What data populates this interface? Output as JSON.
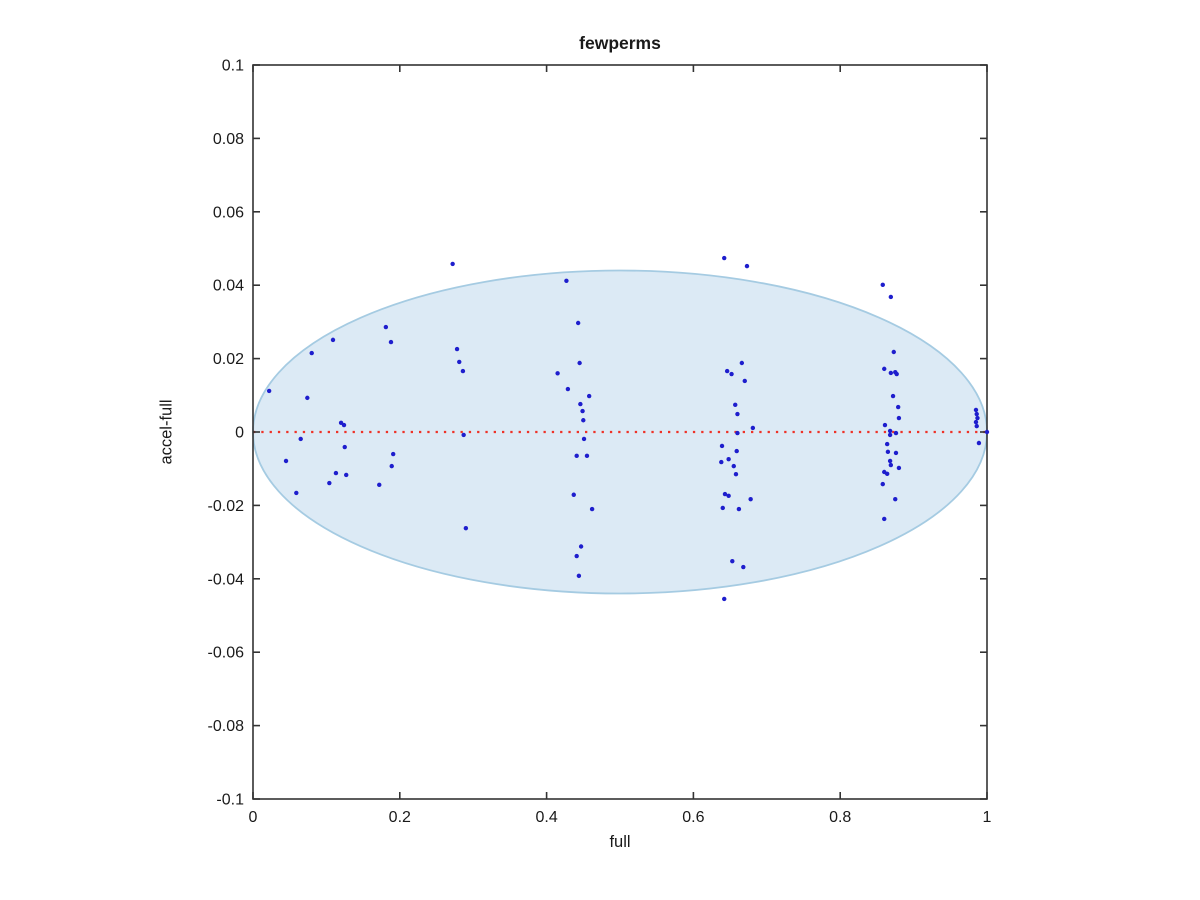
{
  "chart_data": {
    "type": "scatter",
    "title": "fewperms",
    "xlabel": "full",
    "ylabel": "accel-full",
    "xlim": [
      0,
      1
    ],
    "ylim": [
      -0.1,
      0.1
    ],
    "xticks": [
      0,
      0.2,
      0.4,
      0.6,
      0.8,
      1
    ],
    "xticklabels": [
      "0",
      "0.2",
      "0.4",
      "0.6",
      "0.8",
      "1"
    ],
    "yticks": [
      -0.1,
      -0.08,
      -0.06,
      -0.04,
      -0.02,
      0,
      0.02,
      0.04,
      0.06,
      0.08,
      0.1
    ],
    "yticklabels": [
      "-0.1",
      "-0.08",
      "-0.06",
      "-0.04",
      "-0.02",
      "0",
      "0.02",
      "0.04",
      "0.06",
      "0.08",
      "0.1"
    ],
    "grid": false,
    "legend": null,
    "axis_color": "#333333",
    "ellipse": {
      "cx": 0.5,
      "cy": 0,
      "rx": 0.5,
      "ry": 0.044,
      "fill": "#dceaf5",
      "stroke": "#a5cbe2"
    },
    "zero_line": {
      "y": 0,
      "style": "dotted",
      "color": "#ee3227"
    },
    "marker": {
      "shape": "dot",
      "color": "#1e1ecd",
      "size": 2.2
    },
    "points": [
      [
        0.022,
        0.0112
      ],
      [
        0.045,
        -0.0079
      ],
      [
        0.059,
        -0.0166
      ],
      [
        0.065,
        -0.0019
      ],
      [
        0.074,
        0.0093
      ],
      [
        0.08,
        0.0215
      ],
      [
        0.104,
        -0.0139
      ],
      [
        0.109,
        0.0251
      ],
      [
        0.113,
        -0.0112
      ],
      [
        0.12,
        0.0025
      ],
      [
        0.124,
        0.0019
      ],
      [
        0.125,
        -0.0041
      ],
      [
        0.127,
        -0.0117
      ],
      [
        0.172,
        -0.0144
      ],
      [
        0.181,
        0.0286
      ],
      [
        0.188,
        0.0245
      ],
      [
        0.189,
        -0.0093
      ],
      [
        0.191,
        -0.006
      ],
      [
        0.272,
        0.0458
      ],
      [
        0.278,
        0.0226
      ],
      [
        0.281,
        0.0191
      ],
      [
        0.286,
        0.0166
      ],
      [
        0.287,
        -0.0008
      ],
      [
        0.29,
        -0.0262
      ],
      [
        0.415,
        0.016
      ],
      [
        0.427,
        0.0412
      ],
      [
        0.429,
        0.0117
      ],
      [
        0.437,
        -0.0171
      ],
      [
        0.441,
        -0.0065
      ],
      [
        0.441,
        -0.0338
      ],
      [
        0.443,
        0.0297
      ],
      [
        0.444,
        -0.0392
      ],
      [
        0.445,
        0.0188
      ],
      [
        0.446,
        0.0076
      ],
      [
        0.447,
        -0.0312
      ],
      [
        0.449,
        0.0057
      ],
      [
        0.45,
        0.0032
      ],
      [
        0.451,
        -0.0019
      ],
      [
        0.455,
        -0.0065
      ],
      [
        0.458,
        0.0098
      ],
      [
        0.462,
        -0.021
      ],
      [
        0.638,
        -0.0082
      ],
      [
        0.639,
        -0.0038
      ],
      [
        0.64,
        -0.0207
      ],
      [
        0.642,
        0.0474
      ],
      [
        0.642,
        -0.0455
      ],
      [
        0.643,
        -0.0169
      ],
      [
        0.646,
        0.0166
      ],
      [
        0.648,
        -0.0074
      ],
      [
        0.648,
        -0.0174
      ],
      [
        0.652,
        0.0158
      ],
      [
        0.653,
        -0.0352
      ],
      [
        0.655,
        -0.0093
      ],
      [
        0.657,
        0.0074
      ],
      [
        0.658,
        -0.0115
      ],
      [
        0.659,
        -0.0052
      ],
      [
        0.66,
        0.0049
      ],
      [
        0.66,
        -0.0003
      ],
      [
        0.662,
        -0.021
      ],
      [
        0.666,
        0.0188
      ],
      [
        0.668,
        -0.0368
      ],
      [
        0.67,
        0.0139
      ],
      [
        0.673,
        0.0452
      ],
      [
        0.678,
        -0.0183
      ],
      [
        0.681,
        0.0011
      ],
      [
        0.858,
        0.0401
      ],
      [
        0.858,
        -0.0142
      ],
      [
        0.86,
        0.0172
      ],
      [
        0.86,
        -0.0109
      ],
      [
        0.86,
        -0.0237
      ],
      [
        0.861,
        0.0019
      ],
      [
        0.864,
        -0.0033
      ],
      [
        0.864,
        -0.0114
      ],
      [
        0.865,
        -0.0054
      ],
      [
        0.868,
        0.0003
      ],
      [
        0.868,
        -0.0008
      ],
      [
        0.868,
        -0.0079
      ],
      [
        0.869,
        0.0368
      ],
      [
        0.869,
        0.0161
      ],
      [
        0.869,
        -0.009
      ],
      [
        0.872,
        0.0098
      ],
      [
        0.873,
        0.0218
      ],
      [
        0.875,
        0.0163
      ],
      [
        0.875,
        -0.0183
      ],
      [
        0.876,
        -0.0003
      ],
      [
        0.876,
        -0.0057
      ],
      [
        0.877,
        0.0158
      ],
      [
        0.879,
        0.0068
      ],
      [
        0.88,
        0.0038
      ],
      [
        0.88,
        -0.0098
      ],
      [
        0.985,
        0.006
      ],
      [
        0.986,
        0.0049
      ],
      [
        0.987,
        0.0038
      ],
      [
        0.985,
        0.0027
      ],
      [
        0.986,
        0.0016
      ],
      [
        1.0,
        0.0
      ],
      [
        0.989,
        -0.003
      ]
    ]
  }
}
